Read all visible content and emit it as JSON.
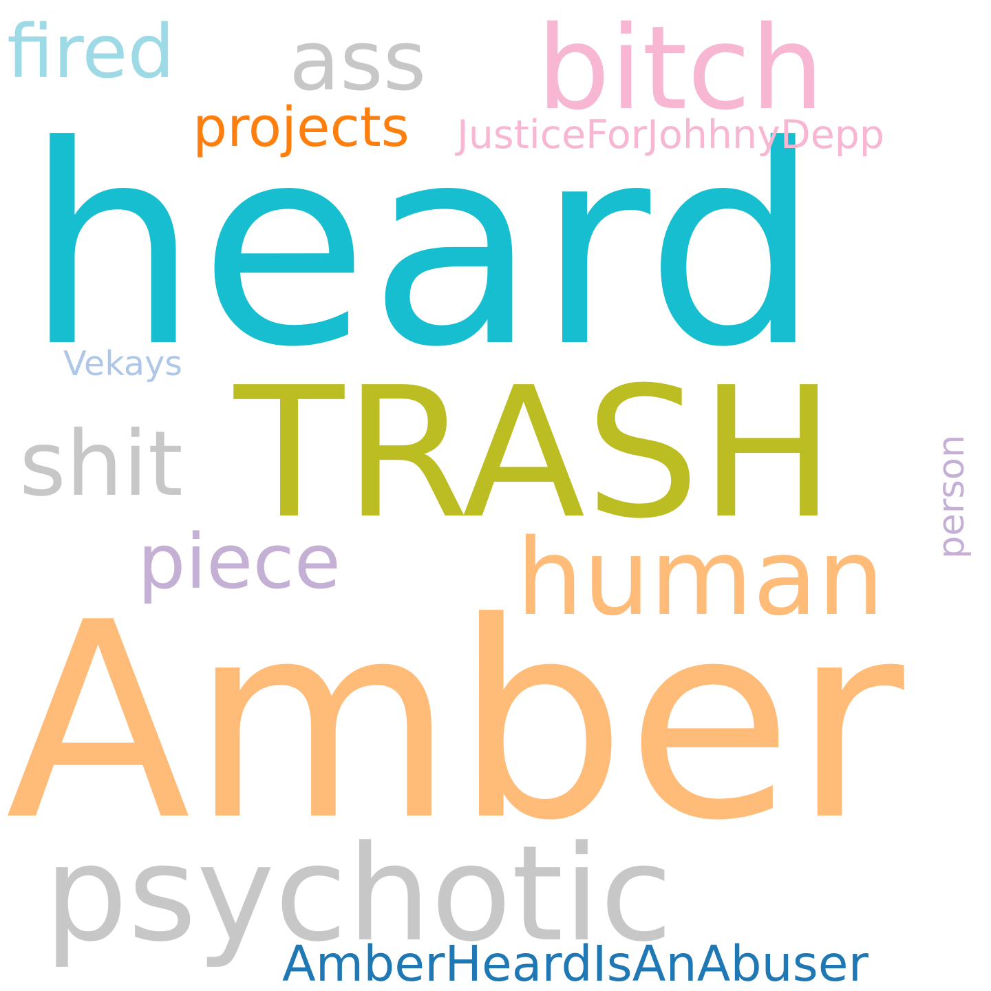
{
  "background": "#ffffff",
  "words": [
    {
      "id": "heard",
      "text": "heard",
      "color": "#17becf"
    },
    {
      "id": "amber",
      "text": "Amber",
      "color": "#ffbb78"
    },
    {
      "id": "trash",
      "text": "TRASH",
      "color": "#bcbd22"
    },
    {
      "id": "psychotic",
      "text": "psychotic",
      "color": "#c7c7c7"
    },
    {
      "id": "bitch",
      "text": "bitch",
      "color": "#f7b6d2"
    },
    {
      "id": "ass",
      "text": "ass",
      "color": "#c7c7c7"
    },
    {
      "id": "human",
      "text": "human",
      "color": "#ffbb78"
    },
    {
      "id": "shit",
      "text": "shit",
      "color": "#c7c7c7"
    },
    {
      "id": "piece",
      "text": "piece",
      "color": "#c5b0d5"
    },
    {
      "id": "fired",
      "text": "fired",
      "color": "#9edae5"
    },
    {
      "id": "projects",
      "text": "projects",
      "color": "#ff7f0e"
    },
    {
      "id": "amberheardisanabuser",
      "text": "AmberHeardIsAnAbuser",
      "color": "#1f77b4"
    },
    {
      "id": "justiceforjohhnydepp",
      "text": "JusticeForJohhnyDepp",
      "color": "#f7b6d2"
    },
    {
      "id": "vekays",
      "text": "Vekays",
      "color": "#aec7e8"
    },
    {
      "id": "person",
      "text": "person",
      "color": "#c5b0d5"
    }
  ]
}
